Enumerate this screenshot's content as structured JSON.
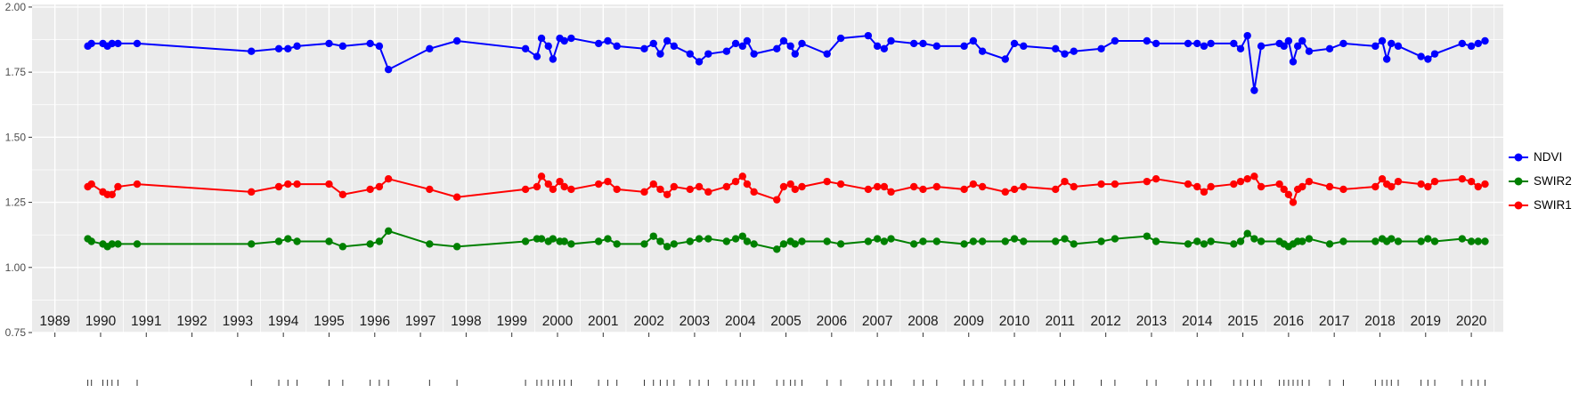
{
  "figure": {
    "background": "#FFFFFF",
    "panel_background": "#EBEBEB",
    "grid_major_color": "#FFFFFF",
    "grid_minor_color": "#FFFFFF",
    "axis_text_color_y": "#4D4D4D",
    "axis_text_color_x": "#1A1A1A",
    "tick_color": "#333333"
  },
  "legend": {
    "position": "right",
    "items": [
      {
        "label": "NDVI",
        "color": "#0000FF"
      },
      {
        "label": "SWIR2",
        "color": "#008000"
      },
      {
        "label": "SWIR1",
        "color": "#FF0000"
      }
    ]
  },
  "chart_data": {
    "type": "line",
    "markers": true,
    "title": "",
    "xlabel": "",
    "ylabel": "",
    "grid": true,
    "legend_position": "right",
    "xlim": [
      1988.5,
      2020.7
    ],
    "ylim": [
      0.75,
      2.01
    ],
    "x_ticks": [
      1989,
      1990,
      1991,
      1992,
      1993,
      1994,
      1995,
      1996,
      1997,
      1998,
      1999,
      2000,
      2001,
      2002,
      2003,
      2004,
      2005,
      2006,
      2007,
      2008,
      2009,
      2010,
      2011,
      2012,
      2013,
      2014,
      2015,
      2016,
      2017,
      2018,
      2019,
      2020
    ],
    "y_ticks": [
      0.75,
      1.0,
      1.25,
      1.5,
      1.75,
      2.0
    ],
    "y_tick_labels": [
      "0.75",
      "1.00",
      "1.25",
      "1.50",
      "1.75",
      "2.00"
    ],
    "x": [
      1989.72,
      1989.8,
      1990.05,
      1990.15,
      1990.25,
      1990.38,
      1990.8,
      1993.3,
      1993.9,
      1994.1,
      1994.3,
      1995.0,
      1995.3,
      1995.9,
      1996.1,
      1996.3,
      1997.2,
      1997.8,
      1999.3,
      1999.55,
      1999.65,
      1999.8,
      1999.9,
      2000.05,
      2000.15,
      2000.3,
      2000.9,
      2001.1,
      2001.3,
      2001.9,
      2002.1,
      2002.25,
      2002.4,
      2002.55,
      2002.9,
      2003.1,
      2003.3,
      2003.7,
      2003.9,
      2004.05,
      2004.15,
      2004.3,
      2004.8,
      2004.95,
      2005.1,
      2005.2,
      2005.35,
      2005.9,
      2006.2,
      2006.8,
      2007.0,
      2007.15,
      2007.3,
      2007.8,
      2008.0,
      2008.3,
      2008.9,
      2009.1,
      2009.3,
      2009.8,
      2010.0,
      2010.2,
      2010.9,
      2011.1,
      2011.3,
      2011.9,
      2012.2,
      2012.9,
      2013.1,
      2013.8,
      2014.0,
      2014.15,
      2014.3,
      2014.8,
      2014.95,
      2015.1,
      2015.25,
      2015.4,
      2015.8,
      2015.9,
      2016.0,
      2016.1,
      2016.2,
      2016.3,
      2016.45,
      2016.9,
      2017.2,
      2017.9,
      2018.05,
      2018.15,
      2018.25,
      2018.4,
      2018.9,
      2019.05,
      2019.2,
      2019.8,
      2020.0,
      2020.15,
      2020.3
    ],
    "series": [
      {
        "name": "NDVI",
        "color": "#0000FF",
        "values": [
          1.85,
          1.86,
          1.86,
          1.85,
          1.86,
          1.86,
          1.86,
          1.83,
          1.84,
          1.84,
          1.85,
          1.86,
          1.85,
          1.86,
          1.85,
          1.76,
          1.84,
          1.87,
          1.84,
          1.81,
          1.88,
          1.85,
          1.8,
          1.88,
          1.87,
          1.88,
          1.86,
          1.87,
          1.85,
          1.84,
          1.86,
          1.82,
          1.87,
          1.85,
          1.82,
          1.79,
          1.82,
          1.83,
          1.86,
          1.85,
          1.87,
          1.82,
          1.84,
          1.87,
          1.85,
          1.82,
          1.86,
          1.82,
          1.88,
          1.89,
          1.85,
          1.84,
          1.87,
          1.86,
          1.86,
          1.85,
          1.85,
          1.87,
          1.83,
          1.8,
          1.86,
          1.85,
          1.84,
          1.82,
          1.83,
          1.84,
          1.87,
          1.87,
          1.86,
          1.86,
          1.86,
          1.85,
          1.86,
          1.86,
          1.84,
          1.89,
          1.68,
          1.85,
          1.86,
          1.85,
          1.87,
          1.79,
          1.85,
          1.87,
          1.83,
          1.84,
          1.86,
          1.85,
          1.87,
          1.8,
          1.86,
          1.85,
          1.81,
          1.8,
          1.82,
          1.86,
          1.85,
          1.86,
          1.87
        ]
      },
      {
        "name": "SWIR2",
        "color": "#008000",
        "values": [
          1.11,
          1.1,
          1.09,
          1.08,
          1.09,
          1.09,
          1.09,
          1.09,
          1.1,
          1.11,
          1.1,
          1.1,
          1.08,
          1.09,
          1.1,
          1.14,
          1.09,
          1.08,
          1.1,
          1.11,
          1.11,
          1.1,
          1.11,
          1.1,
          1.1,
          1.09,
          1.1,
          1.11,
          1.09,
          1.09,
          1.12,
          1.1,
          1.08,
          1.09,
          1.1,
          1.11,
          1.11,
          1.1,
          1.11,
          1.12,
          1.1,
          1.09,
          1.07,
          1.09,
          1.1,
          1.09,
          1.1,
          1.1,
          1.09,
          1.1,
          1.11,
          1.1,
          1.11,
          1.09,
          1.1,
          1.1,
          1.09,
          1.1,
          1.1,
          1.1,
          1.11,
          1.1,
          1.1,
          1.11,
          1.09,
          1.1,
          1.11,
          1.12,
          1.1,
          1.09,
          1.1,
          1.09,
          1.1,
          1.09,
          1.1,
          1.13,
          1.11,
          1.1,
          1.1,
          1.09,
          1.08,
          1.09,
          1.1,
          1.1,
          1.11,
          1.09,
          1.1,
          1.1,
          1.11,
          1.1,
          1.11,
          1.1,
          1.1,
          1.11,
          1.1,
          1.11,
          1.1,
          1.1,
          1.1
        ]
      },
      {
        "name": "SWIR1",
        "color": "#FF0000",
        "values": [
          1.31,
          1.32,
          1.29,
          1.28,
          1.28,
          1.31,
          1.32,
          1.29,
          1.31,
          1.32,
          1.32,
          1.32,
          1.28,
          1.3,
          1.31,
          1.34,
          1.3,
          1.27,
          1.3,
          1.31,
          1.35,
          1.32,
          1.3,
          1.33,
          1.31,
          1.3,
          1.32,
          1.33,
          1.3,
          1.29,
          1.32,
          1.3,
          1.28,
          1.31,
          1.3,
          1.31,
          1.29,
          1.31,
          1.33,
          1.35,
          1.32,
          1.29,
          1.26,
          1.31,
          1.32,
          1.3,
          1.31,
          1.33,
          1.32,
          1.3,
          1.31,
          1.31,
          1.29,
          1.31,
          1.3,
          1.31,
          1.3,
          1.32,
          1.31,
          1.29,
          1.3,
          1.31,
          1.3,
          1.33,
          1.31,
          1.32,
          1.32,
          1.33,
          1.34,
          1.32,
          1.31,
          1.29,
          1.31,
          1.32,
          1.33,
          1.34,
          1.35,
          1.31,
          1.32,
          1.3,
          1.28,
          1.25,
          1.3,
          1.31,
          1.33,
          1.31,
          1.3,
          1.31,
          1.34,
          1.32,
          1.31,
          1.33,
          1.32,
          1.31,
          1.33,
          1.34,
          1.33,
          1.31,
          1.32
        ]
      }
    ]
  }
}
